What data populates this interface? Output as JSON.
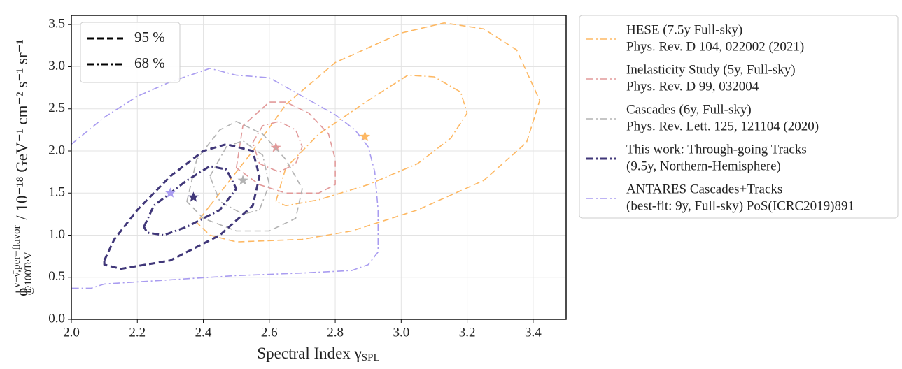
{
  "chart_data": {
    "type": "contour",
    "xlabel": {
      "text": "Spectral Index γ",
      "subscript": "SPL"
    },
    "ylabel": {
      "symbol": "ϕ",
      "superscript": "ν+ν̄,per−flavor",
      "subscript": "@100TeV",
      "unit": " / 10⁻¹⁸ GeV⁻¹ cm⁻² s⁻¹ sr⁻¹"
    },
    "xlim": [
      2.0,
      3.5
    ],
    "ylim": [
      0,
      3.61
    ],
    "xticks": [
      {
        "value": 2.0,
        "label": "2.0"
      },
      {
        "value": 2.2,
        "label": "2.2"
      },
      {
        "value": 2.4,
        "label": "2.4"
      },
      {
        "value": 2.6,
        "label": "2.6"
      },
      {
        "value": 2.8,
        "label": "2.8"
      },
      {
        "value": 3.0,
        "label": "3.0"
      },
      {
        "value": 3.2,
        "label": "3.2"
      },
      {
        "value": 3.4,
        "label": "3.4"
      }
    ],
    "yticks": [
      {
        "value": 0,
        "label": "0.0"
      },
      {
        "value": 0.5,
        "label": "0.5"
      },
      {
        "value": 1.0,
        "label": "1.0"
      },
      {
        "value": 1.5,
        "label": "1.5"
      },
      {
        "value": 2.0,
        "label": "2.0"
      },
      {
        "value": 2.5,
        "label": "2.5"
      },
      {
        "value": 3.0,
        "label": "3.0"
      },
      {
        "value": 3.5,
        "label": "3.5"
      }
    ],
    "grid": true,
    "style_legend": [
      {
        "label": "95 %",
        "linestyle": "dashed"
      },
      {
        "label": "68 %",
        "linestyle": "dashdot"
      }
    ],
    "series": [
      {
        "name": [
          "HESE (7.5y Full-sky)",
          "Phys. Rev. D 104, 022002 (2021)"
        ],
        "color": "#fdb863",
        "linewidth": 1.6,
        "contours": [
          {
            "linestyle": "dashed",
            "closed": true,
            "x": [
              2.42,
              2.55,
              2.65,
              2.8,
              3.0,
              3.13,
              3.25,
              3.35,
              3.42,
              3.38,
              3.25,
              3.05,
              2.85,
              2.7,
              2.5,
              2.42,
              2.38
            ],
            "y": [
              1.35,
              2.0,
              2.55,
              3.05,
              3.4,
              3.52,
              3.45,
              3.2,
              2.6,
              2.1,
              1.65,
              1.3,
              1.05,
              0.95,
              0.92,
              1.0,
              1.15
            ]
          },
          {
            "linestyle": "dashdot",
            "closed": true,
            "x": [
              2.62,
              2.65,
              2.75,
              2.9,
              3.02,
              3.1,
              3.18,
              3.2,
              3.15,
              3.05,
              2.9,
              2.75,
              2.65
            ],
            "y": [
              1.4,
              1.8,
              2.2,
              2.6,
              2.9,
              2.88,
              2.7,
              2.45,
              2.15,
              1.85,
              1.6,
              1.42,
              1.35
            ]
          }
        ],
        "best_fit": {
          "x": 2.89,
          "y": 2.17
        }
      },
      {
        "name": [
          "Inelasticity Study (5y, Full-sky)",
          "Phys. Rev. D 99, 032004"
        ],
        "color": "#e29a9a",
        "linewidth": 1.6,
        "contours": [
          {
            "linestyle": "dashed",
            "closed": true,
            "x": [
              2.5,
              2.52,
              2.6,
              2.65,
              2.72,
              2.78,
              2.8,
              2.8,
              2.75,
              2.65,
              2.57
            ],
            "y": [
              1.8,
              2.3,
              2.58,
              2.58,
              2.45,
              2.2,
              1.9,
              1.6,
              1.5,
              1.5,
              1.6
            ]
          },
          {
            "linestyle": "dashdot",
            "closed": true,
            "x": [
              2.55,
              2.58,
              2.63,
              2.68,
              2.7,
              2.68,
              2.63,
              2.57
            ],
            "y": [
              2.1,
              2.3,
              2.35,
              2.25,
              2.05,
              1.85,
              1.75,
              1.85
            ]
          }
        ],
        "best_fit": {
          "x": 2.62,
          "y": 2.04
        }
      },
      {
        "name": [
          "Cascades (6y, Full-sky)",
          "Phys. Rev. Lett. 125, 121104 (2020)"
        ],
        "color": "#b3b3b3",
        "linewidth": 1.6,
        "contours": [
          {
            "linestyle": "dashed",
            "closed": true,
            "x": [
              2.35,
              2.38,
              2.45,
              2.5,
              2.58,
              2.65,
              2.7,
              2.68,
              2.6,
              2.5,
              2.4
            ],
            "y": [
              1.4,
              1.9,
              2.25,
              2.35,
              2.2,
              1.9,
              1.55,
              1.2,
              1.05,
              1.05,
              1.2
            ]
          },
          {
            "linestyle": "dashdot",
            "closed": true,
            "x": [
              2.42,
              2.47,
              2.52,
              2.58,
              2.6,
              2.57,
              2.52,
              2.45
            ],
            "y": [
              1.7,
              2.05,
              2.12,
              1.95,
              1.6,
              1.3,
              1.25,
              1.4
            ]
          }
        ],
        "best_fit": {
          "x": 2.52,
          "y": 1.65
        }
      },
      {
        "name": [
          "This work: Through-going Tracks",
          "(9.5y, Northern-Hemisphere)"
        ],
        "color": "#403779",
        "linewidth": 3,
        "contours": [
          {
            "linestyle": "dashed",
            "closed": true,
            "x": [
              2.1,
              2.13,
              2.2,
              2.3,
              2.4,
              2.47,
              2.55,
              2.57,
              2.55,
              2.45,
              2.3,
              2.15,
              2.1
            ],
            "y": [
              0.7,
              0.95,
              1.3,
              1.7,
              2.0,
              2.08,
              2.0,
              1.7,
              1.35,
              1.0,
              0.7,
              0.6,
              0.65
            ]
          },
          {
            "linestyle": "dashdot",
            "closed": true,
            "x": [
              2.22,
              2.25,
              2.35,
              2.42,
              2.47,
              2.5,
              2.45,
              2.35,
              2.28,
              2.23
            ],
            "y": [
              1.1,
              1.35,
              1.65,
              1.82,
              1.78,
              1.55,
              1.3,
              1.1,
              1.0,
              1.03
            ]
          }
        ],
        "best_fit": {
          "x": 2.37,
          "y": 1.45
        }
      },
      {
        "name": [
          "ANTARES Cascades+Tracks",
          "(best-fit: 9y, Full-sky) PoS(ICRC2019)891"
        ],
        "color": "#a99cf0",
        "linewidth": 1.6,
        "contours": [
          {
            "linestyle": "dashdot",
            "closed": false,
            "x": [
              2.0,
              2.1,
              2.2,
              2.3,
              2.42,
              2.5,
              2.6,
              2.7,
              2.8,
              2.86,
              2.9,
              2.92,
              2.93,
              2.93,
              2.9,
              2.85,
              2.7,
              2.5,
              2.3,
              2.1,
              2.06,
              2.0
            ],
            "y": [
              2.08,
              2.4,
              2.65,
              2.82,
              2.98,
              2.9,
              2.87,
              2.65,
              2.43,
              2.25,
              2.05,
              1.75,
              1.3,
              0.8,
              0.65,
              0.58,
              0.55,
              0.52,
              0.47,
              0.42,
              0.37,
              0.37
            ]
          }
        ],
        "best_fit": {
          "x": 2.3,
          "y": 1.5
        }
      }
    ]
  }
}
